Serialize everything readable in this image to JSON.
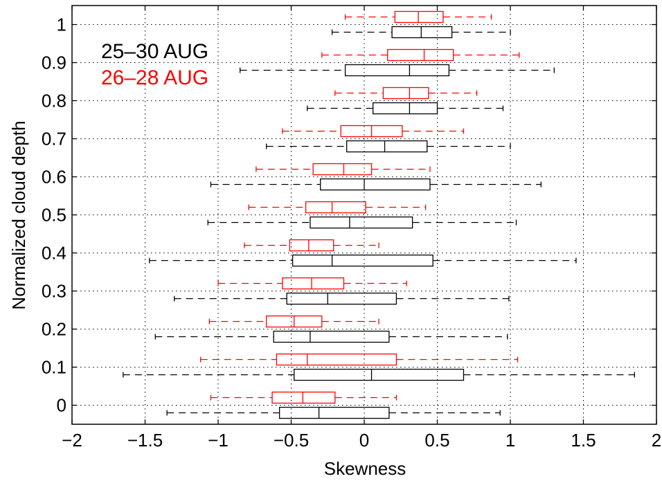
{
  "chart_data": {
    "type": "boxplot",
    "orientation": "horizontal",
    "title": "",
    "xlabel": "Skewness",
    "ylabel": "Normalized cloud depth",
    "xlim": [
      -2,
      2
    ],
    "ylim": [
      -0.05,
      1.05
    ],
    "grid": true,
    "grid_style": "dotted",
    "x_ticks": [
      -2,
      -1.5,
      -1,
      -0.5,
      0,
      0.5,
      1,
      1.5,
      2
    ],
    "x_tick_labels": [
      "−2",
      "−1.5",
      "−1",
      "−0.5",
      "0",
      "0.5",
      "1",
      "1.5",
      "2"
    ],
    "y_ticks": [
      0,
      0.1,
      0.2,
      0.3,
      0.4,
      0.5,
      0.6,
      0.7,
      0.8,
      0.9,
      1
    ],
    "y_tick_labels": [
      "0",
      "0.1",
      "0.2",
      "0.3",
      "0.4",
      "0.5",
      "0.6",
      "0.7",
      "0.8",
      "0.9",
      "1"
    ],
    "legend_placement": "top-left",
    "series": [
      {
        "name": "25–30 AUG",
        "color": "#000000",
        "y_offset": -0.02,
        "boxes": [
          {
            "y": 0,
            "whisker_low": -1.35,
            "q1": -0.58,
            "median": -0.31,
            "q3": 0.17,
            "whisker_high": 0.93
          },
          {
            "y": 0.1,
            "whisker_low": -1.65,
            "q1": -0.48,
            "median": 0.05,
            "q3": 0.68,
            "whisker_high": 1.85
          },
          {
            "y": 0.2,
            "whisker_low": -1.43,
            "q1": -0.62,
            "median": -0.37,
            "q3": 0.17,
            "whisker_high": 0.98
          },
          {
            "y": 0.3,
            "whisker_low": -1.3,
            "q1": -0.53,
            "median": -0.25,
            "q3": 0.22,
            "whisker_high": 0.99
          },
          {
            "y": 0.4,
            "whisker_low": -1.47,
            "q1": -0.49,
            "median": -0.22,
            "q3": 0.47,
            "whisker_high": 1.45
          },
          {
            "y": 0.5,
            "whisker_low": -1.07,
            "q1": -0.37,
            "median": -0.1,
            "q3": 0.33,
            "whisker_high": 1.04
          },
          {
            "y": 0.6,
            "whisker_low": -1.05,
            "q1": -0.3,
            "median": 0.0,
            "q3": 0.45,
            "whisker_high": 1.21
          },
          {
            "y": 0.7,
            "whisker_low": -0.67,
            "q1": -0.12,
            "median": 0.14,
            "q3": 0.43,
            "whisker_high": 1.0
          },
          {
            "y": 0.8,
            "whisker_low": -0.39,
            "q1": 0.06,
            "median": 0.31,
            "q3": 0.5,
            "whisker_high": 0.95
          },
          {
            "y": 0.9,
            "whisker_low": -0.85,
            "q1": -0.13,
            "median": 0.31,
            "q3": 0.58,
            "whisker_high": 1.3
          },
          {
            "y": 1,
            "whisker_low": -0.22,
            "q1": 0.19,
            "median": 0.39,
            "q3": 0.6,
            "whisker_high": 1.0
          }
        ]
      },
      {
        "name": "26–28 AUG",
        "color": "#ff0000",
        "y_offset": 0.02,
        "boxes": [
          {
            "y": 0,
            "whisker_low": -1.05,
            "q1": -0.63,
            "median": -0.42,
            "q3": -0.2,
            "whisker_high": 0.22
          },
          {
            "y": 0.1,
            "whisker_low": -1.12,
            "q1": -0.6,
            "median": -0.39,
            "q3": 0.22,
            "whisker_high": 1.05
          },
          {
            "y": 0.2,
            "whisker_low": -1.06,
            "q1": -0.67,
            "median": -0.48,
            "q3": -0.29,
            "whisker_high": 0.1
          },
          {
            "y": 0.3,
            "whisker_low": -1.0,
            "q1": -0.56,
            "median": -0.36,
            "q3": -0.14,
            "whisker_high": 0.29
          },
          {
            "y": 0.4,
            "whisker_low": -0.82,
            "q1": -0.51,
            "median": -0.38,
            "q3": -0.21,
            "whisker_high": 0.1
          },
          {
            "y": 0.5,
            "whisker_low": -0.79,
            "q1": -0.4,
            "median": -0.22,
            "q3": 0.01,
            "whisker_high": 0.42
          },
          {
            "y": 0.6,
            "whisker_low": -0.74,
            "q1": -0.35,
            "median": -0.14,
            "q3": 0.05,
            "whisker_high": 0.45
          },
          {
            "y": 0.7,
            "whisker_low": -0.56,
            "q1": -0.16,
            "median": 0.05,
            "q3": 0.26,
            "whisker_high": 0.68
          },
          {
            "y": 0.8,
            "whisker_low": -0.2,
            "q1": 0.13,
            "median": 0.31,
            "q3": 0.44,
            "whisker_high": 0.77
          },
          {
            "y": 0.9,
            "whisker_low": -0.29,
            "q1": 0.16,
            "median": 0.41,
            "q3": 0.61,
            "whisker_high": 1.06
          },
          {
            "y": 1,
            "whisker_low": -0.13,
            "q1": 0.21,
            "median": 0.37,
            "q3": 0.54,
            "whisker_high": 0.87
          }
        ]
      }
    ]
  }
}
